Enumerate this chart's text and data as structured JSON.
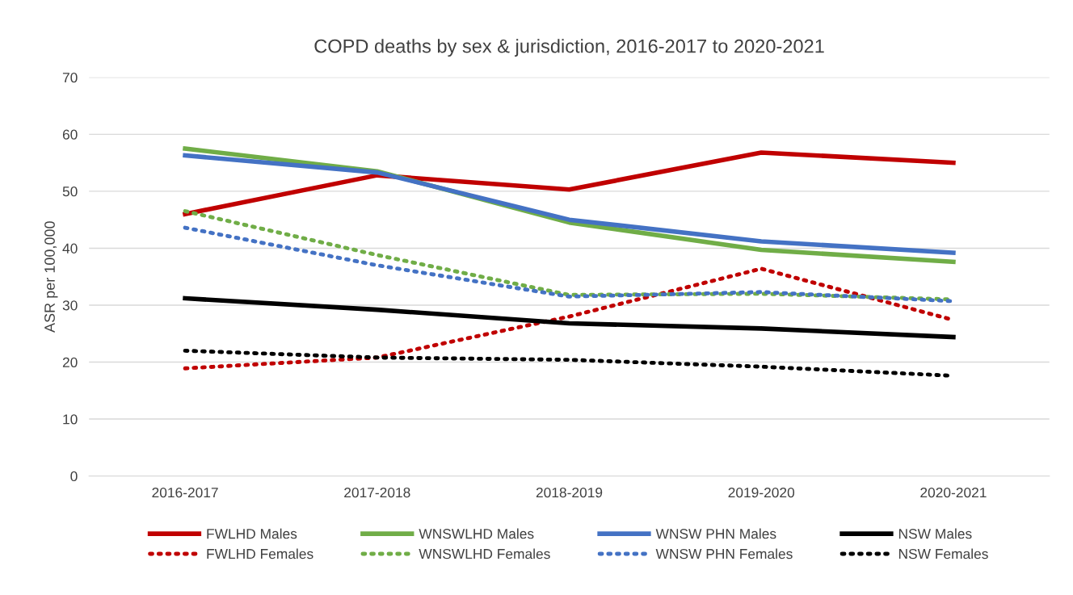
{
  "chart_data": {
    "type": "line",
    "title": "COPD deaths by sex & jurisdiction, 2016-2017 to 2020-2021",
    "ylabel": "ASR per 100,000",
    "categories": [
      "2016-2017",
      "2017-2018",
      "2018-2019",
      "2019-2020",
      "2020-2021"
    ],
    "ylim": [
      0,
      70
    ],
    "yticks": [
      0,
      10,
      20,
      30,
      40,
      50,
      60,
      70
    ],
    "grid": "y",
    "legend": "bottom",
    "marker": "none",
    "series": [
      {
        "name": "FWLHD Males",
        "color": "#c00000",
        "line_style": "solid",
        "values": [
          46.0,
          52.8,
          50.3,
          56.8,
          55.0
        ]
      },
      {
        "name": "FWLHD Females",
        "color": "#c00000",
        "line_style": "dotted",
        "values": [
          18.9,
          20.8,
          28.0,
          36.4,
          27.4
        ]
      },
      {
        "name": "WNSWLHD Males",
        "color": "#70ad47",
        "line_style": "solid",
        "values": [
          57.5,
          53.5,
          44.5,
          39.7,
          37.6
        ]
      },
      {
        "name": "WNSWLHD Females",
        "color": "#70ad47",
        "line_style": "dotted",
        "values": [
          46.5,
          38.8,
          31.8,
          32.0,
          31.0
        ]
      },
      {
        "name": "WNSW PHN Males",
        "color": "#4472c4",
        "line_style": "solid",
        "values": [
          56.3,
          53.3,
          45.0,
          41.2,
          39.2
        ]
      },
      {
        "name": "WNSW PHN Females",
        "color": "#4472c4",
        "line_style": "dotted",
        "values": [
          43.6,
          37.0,
          31.5,
          32.3,
          30.7
        ]
      },
      {
        "name": "NSW Males",
        "color": "#000000",
        "line_style": "solid",
        "values": [
          31.2,
          29.2,
          26.8,
          25.9,
          24.4
        ]
      },
      {
        "name": "NSW Females",
        "color": "#000000",
        "line_style": "dotted",
        "values": [
          22.0,
          20.8,
          20.4,
          19.2,
          17.6
        ]
      }
    ]
  }
}
